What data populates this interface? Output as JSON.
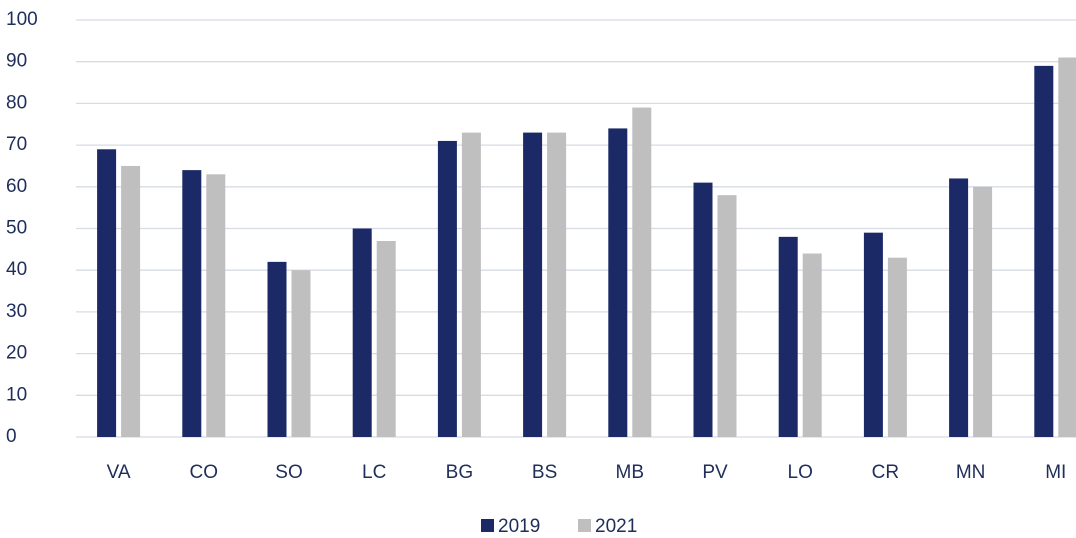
{
  "chart_data": {
    "type": "bar",
    "categories": [
      "VA",
      "CO",
      "SO",
      "LC",
      "BG",
      "BS",
      "MB",
      "PV",
      "LO",
      "CR",
      "MN",
      "MI"
    ],
    "series": [
      {
        "name": "2019",
        "color": "#1b2a66",
        "values": [
          69,
          64,
          42,
          50,
          71,
          73,
          74,
          61,
          48,
          49,
          62,
          89
        ]
      },
      {
        "name": "2021",
        "color": "#bfbfbf",
        "values": [
          65,
          63,
          40,
          47,
          73,
          73,
          79,
          58,
          44,
          43,
          60,
          91
        ]
      }
    ],
    "ylim": [
      0,
      100
    ],
    "yticks": [
      0,
      10,
      20,
      30,
      40,
      50,
      60,
      70,
      80,
      90,
      100
    ],
    "grid": true,
    "legend": "bottom"
  }
}
